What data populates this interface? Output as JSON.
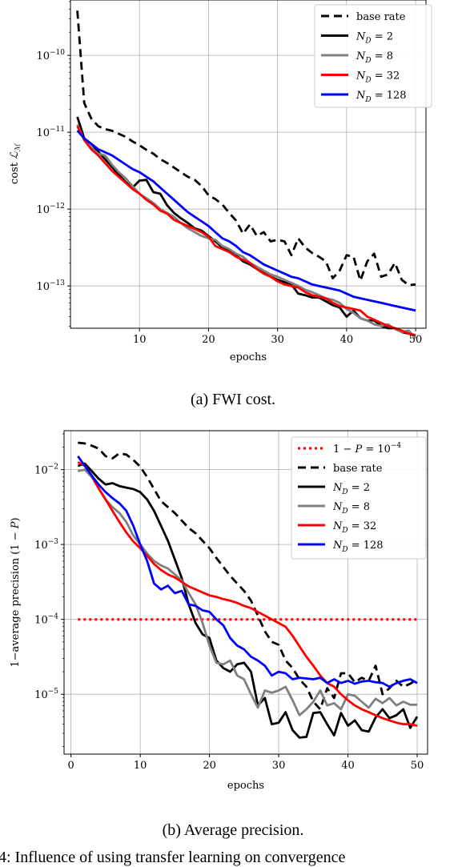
{
  "figure": {
    "caption_a": "(a) FWI cost.",
    "caption_b": "(b) Average precision.",
    "bottom_text": "4: Influence of using transfer learning on convergence"
  },
  "colors": {
    "base_rate": "#000000",
    "N2": "#000000",
    "N8": "#808080",
    "N32": "#ff0000",
    "N128": "#0000ff",
    "threshold": "#ff0000",
    "grid": "#b0b0b0"
  },
  "chart_data": [
    {
      "type": "line",
      "title": "",
      "xlabel": "epochs",
      "ylabel": "cost ℒ_ℳ",
      "xlim": [
        0,
        51.5
      ],
      "ylim_log10": [
        -13.55,
        -9.28
      ],
      "yscale": "log",
      "grid": true,
      "legend": "top-right",
      "xticks": [
        10,
        20,
        30,
        40,
        50
      ],
      "yticks": [
        {
          "exp": -10,
          "label": "10^-10"
        },
        {
          "exp": -11,
          "label": "10^-11"
        },
        {
          "exp": -12,
          "label": "10^-12"
        },
        {
          "exp": -13,
          "label": "10^-13"
        }
      ],
      "x": [
        1,
        2,
        3,
        4,
        5,
        6,
        7,
        8,
        9,
        10,
        11,
        12,
        13,
        14,
        15,
        16,
        17,
        18,
        19,
        20,
        21,
        22,
        23,
        24,
        25,
        26,
        27,
        28,
        29,
        30,
        31,
        32,
        33,
        34,
        35,
        36,
        37,
        38,
        39,
        40,
        41,
        42,
        43,
        44,
        45,
        46,
        47,
        48,
        49,
        50
      ],
      "series": [
        {
          "name": "base rate",
          "color": "base_rate",
          "dash": "dashed",
          "values_log10": [
            -9.42,
            -10.62,
            -10.82,
            -10.92,
            -10.96,
            -10.98,
            -11.02,
            -11.06,
            -11.12,
            -11.17,
            -11.23,
            -11.28,
            -11.35,
            -11.4,
            -11.46,
            -11.52,
            -11.58,
            -11.62,
            -11.7,
            -11.82,
            -11.87,
            -11.94,
            -12.05,
            -12.15,
            -12.32,
            -12.2,
            -12.35,
            -12.3,
            -12.42,
            -12.4,
            -12.42,
            -12.6,
            -12.38,
            -12.5,
            -12.57,
            -12.62,
            -12.68,
            -12.9,
            -12.8,
            -12.6,
            -12.62,
            -12.93,
            -12.68,
            -12.58,
            -12.88,
            -12.85,
            -12.7,
            -12.92,
            -12.99,
            -12.98
          ]
        },
        {
          "name": "N_D = 2",
          "color": "N2",
          "dash": "solid",
          "values_log10": [
            -10.8,
            -11.08,
            -11.15,
            -11.25,
            -11.35,
            -11.45,
            -11.55,
            -11.65,
            -11.72,
            -11.63,
            -11.62,
            -11.78,
            -11.8,
            -11.95,
            -12.05,
            -12.12,
            -12.18,
            -12.25,
            -12.28,
            -12.35,
            -12.42,
            -12.5,
            -12.55,
            -12.6,
            -12.68,
            -12.72,
            -12.78,
            -12.82,
            -12.88,
            -12.92,
            -12.95,
            -12.98,
            -13.1,
            -13.12,
            -13.15,
            -13.15,
            -13.2,
            -13.25,
            -13.28,
            -13.4,
            -13.32,
            -13.42,
            -13.45,
            -13.45,
            -13.52,
            -13.55,
            -13.55,
            -13.6,
            -13.62,
            -13.65
          ]
        },
        {
          "name": "N_D = 8",
          "color": "N8",
          "dash": "solid",
          "values_log10": [
            -10.9,
            -11.1,
            -11.2,
            -11.28,
            -11.3,
            -11.42,
            -11.52,
            -11.6,
            -11.7,
            -11.8,
            -11.86,
            -11.92,
            -12.0,
            -12.05,
            -12.1,
            -12.18,
            -12.25,
            -12.3,
            -12.35,
            -12.38,
            -12.4,
            -12.48,
            -12.52,
            -12.58,
            -12.62,
            -12.7,
            -12.75,
            -12.8,
            -12.85,
            -12.88,
            -12.92,
            -12.96,
            -13.0,
            -13.05,
            -13.08,
            -13.12,
            -13.16,
            -13.18,
            -13.22,
            -13.3,
            -13.35,
            -13.42,
            -13.45,
            -13.5,
            -13.52,
            -13.5,
            -13.56,
            -13.6,
            -13.58,
            -13.68
          ]
        },
        {
          "name": "N_D = 32",
          "color": "N32",
          "dash": "solid",
          "values_log10": [
            -10.92,
            -11.1,
            -11.22,
            -11.3,
            -11.4,
            -11.5,
            -11.58,
            -11.66,
            -11.74,
            -11.8,
            -11.88,
            -11.94,
            -12.02,
            -12.06,
            -12.14,
            -12.18,
            -12.22,
            -12.26,
            -12.3,
            -12.36,
            -12.48,
            -12.52,
            -12.56,
            -12.62,
            -12.66,
            -12.7,
            -12.78,
            -12.84,
            -12.88,
            -12.94,
            -12.98,
            -13.0,
            -13.02,
            -13.08,
            -13.12,
            -13.14,
            -13.16,
            -13.22,
            -13.26,
            -13.28,
            -13.3,
            -13.32,
            -13.4,
            -13.44,
            -13.48,
            -13.52,
            -13.55,
            -13.58,
            -13.62,
            -13.64
          ]
        },
        {
          "name": "N_D = 128",
          "color": "N128",
          "dash": "solid",
          "values_log10": [
            -10.98,
            -11.08,
            -11.15,
            -11.22,
            -11.26,
            -11.3,
            -11.36,
            -11.42,
            -11.48,
            -11.52,
            -11.58,
            -11.64,
            -11.72,
            -11.8,
            -11.88,
            -11.96,
            -12.04,
            -12.1,
            -12.16,
            -12.22,
            -12.3,
            -12.38,
            -12.42,
            -12.48,
            -12.56,
            -12.6,
            -12.66,
            -12.72,
            -12.76,
            -12.8,
            -12.84,
            -12.88,
            -12.9,
            -12.94,
            -12.98,
            -13.0,
            -13.02,
            -13.04,
            -13.06,
            -13.1,
            -13.14,
            -13.16,
            -13.18,
            -13.2,
            -13.22,
            -13.24,
            -13.26,
            -13.28,
            -13.3,
            -13.32
          ]
        }
      ]
    },
    {
      "type": "line",
      "title": "",
      "xlabel": "epochs",
      "ylabel": "1−average precision (1 − P)",
      "xlim": [
        -1,
        51.5
      ],
      "ylim_log10": [
        -5.8,
        -1.48
      ],
      "yscale": "log",
      "grid": true,
      "legend": "top-right",
      "xticks": [
        0,
        10,
        20,
        30,
        40,
        50
      ],
      "yticks": [
        {
          "exp": -2,
          "label": "10^-2"
        },
        {
          "exp": -3,
          "label": "10^-3"
        },
        {
          "exp": -4,
          "label": "10^-4"
        },
        {
          "exp": -5,
          "label": "10^-5"
        }
      ],
      "x": [
        1,
        2,
        3,
        4,
        5,
        6,
        7,
        8,
        9,
        10,
        11,
        12,
        13,
        14,
        15,
        16,
        17,
        18,
        19,
        20,
        21,
        22,
        23,
        24,
        25,
        26,
        27,
        28,
        29,
        30,
        31,
        32,
        33,
        34,
        35,
        36,
        37,
        38,
        39,
        40,
        41,
        42,
        43,
        44,
        45,
        46,
        47,
        48,
        49,
        50
      ],
      "series": [
        {
          "name": "1 − P = 10^-4",
          "color": "threshold",
          "dash": "dotted",
          "constant_log10": -4,
          "x_range": [
            1,
            50
          ]
        },
        {
          "name": "base rate",
          "color": "base_rate",
          "dash": "dashed",
          "values_log10": [
            -1.64,
            -1.65,
            -1.68,
            -1.72,
            -1.82,
            -1.85,
            -1.78,
            -1.8,
            -1.87,
            -1.96,
            -2.1,
            -2.26,
            -2.42,
            -2.5,
            -2.58,
            -2.68,
            -2.78,
            -2.85,
            -2.95,
            -3.05,
            -3.18,
            -3.3,
            -3.42,
            -3.52,
            -3.62,
            -3.75,
            -3.95,
            -4.16,
            -4.3,
            -4.34,
            -4.55,
            -4.65,
            -4.8,
            -4.9,
            -5.1,
            -5.2,
            -4.92,
            -5.05,
            -4.72,
            -4.72,
            -4.84,
            -4.78,
            -4.82,
            -4.62,
            -5.0,
            -4.92,
            -4.82,
            -4.9,
            -4.86,
            -4.8
          ]
        },
        {
          "name": "N_D = 2",
          "color": "N2",
          "dash": "solid",
          "values_log10": [
            -1.95,
            -1.92,
            -2.02,
            -2.12,
            -2.2,
            -2.18,
            -2.22,
            -2.24,
            -2.26,
            -2.3,
            -2.4,
            -2.55,
            -2.75,
            -2.95,
            -3.2,
            -3.45,
            -3.8,
            -4.05,
            -4.2,
            -4.25,
            -4.55,
            -4.65,
            -4.7,
            -4.6,
            -4.58,
            -4.7,
            -5.15,
            -5.05,
            -5.4,
            -5.38,
            -5.24,
            -5.48,
            -5.58,
            -5.57,
            -5.25,
            -5.24,
            -5.4,
            -5.55,
            -5.25,
            -5.42,
            -5.35,
            -5.48,
            -5.5,
            -5.31,
            -5.2,
            -5.32,
            -5.28,
            -5.2,
            -5.45,
            -5.3
          ]
        },
        {
          "name": "N_D = 8",
          "color": "N8",
          "dash": "solid",
          "values_log10": [
            -2.02,
            -2.0,
            -2.1,
            -2.25,
            -2.4,
            -2.5,
            -2.58,
            -2.7,
            -2.88,
            -3.0,
            -3.12,
            -3.22,
            -3.28,
            -3.32,
            -3.4,
            -3.48,
            -3.65,
            -3.8,
            -4.05,
            -4.35,
            -4.58,
            -4.6,
            -4.55,
            -4.75,
            -4.8,
            -5.0,
            -5.18,
            -4.95,
            -4.98,
            -4.95,
            -4.9,
            -5.08,
            -5.28,
            -5.2,
            -5.1,
            -4.95,
            -5.15,
            -5.12,
            -5.2,
            -5.0,
            -5.02,
            -5.1,
            -5.18,
            -5.06,
            -5.12,
            -5.05,
            -5.15,
            -5.1,
            -5.14,
            -5.14
          ]
        },
        {
          "name": "N_D = 32",
          "color": "N32",
          "dash": "solid",
          "values_log10": [
            -1.9,
            -1.95,
            -2.08,
            -2.25,
            -2.4,
            -2.55,
            -2.7,
            -2.84,
            -2.96,
            -3.05,
            -3.15,
            -3.26,
            -3.34,
            -3.4,
            -3.44,
            -3.5,
            -3.56,
            -3.6,
            -3.64,
            -3.68,
            -3.7,
            -3.73,
            -3.75,
            -3.78,
            -3.82,
            -3.85,
            -3.9,
            -3.95,
            -4.0,
            -4.05,
            -4.1,
            -4.22,
            -4.36,
            -4.5,
            -4.62,
            -4.75,
            -4.85,
            -4.9,
            -5.0,
            -5.08,
            -5.15,
            -5.2,
            -5.24,
            -5.28,
            -5.32,
            -5.35,
            -5.38,
            -5.4,
            -5.4,
            -5.42
          ]
        },
        {
          "name": "N_D = 128",
          "color": "N128",
          "dash": "solid",
          "values_log10": [
            -1.82,
            -1.95,
            -2.08,
            -2.2,
            -2.3,
            -2.38,
            -2.45,
            -2.55,
            -2.75,
            -3.0,
            -3.22,
            -3.52,
            -3.6,
            -3.55,
            -3.65,
            -3.62,
            -3.8,
            -3.82,
            -3.88,
            -3.9,
            -4.0,
            -4.08,
            -4.25,
            -4.35,
            -4.4,
            -4.5,
            -4.55,
            -4.62,
            -4.75,
            -4.7,
            -4.72,
            -4.8,
            -4.78,
            -4.79,
            -4.8,
            -4.78,
            -4.85,
            -4.8,
            -4.85,
            -4.82,
            -4.86,
            -4.83,
            -4.82,
            -4.84,
            -4.85,
            -4.9,
            -4.85,
            -4.82,
            -4.8,
            -4.85
          ]
        }
      ]
    }
  ]
}
